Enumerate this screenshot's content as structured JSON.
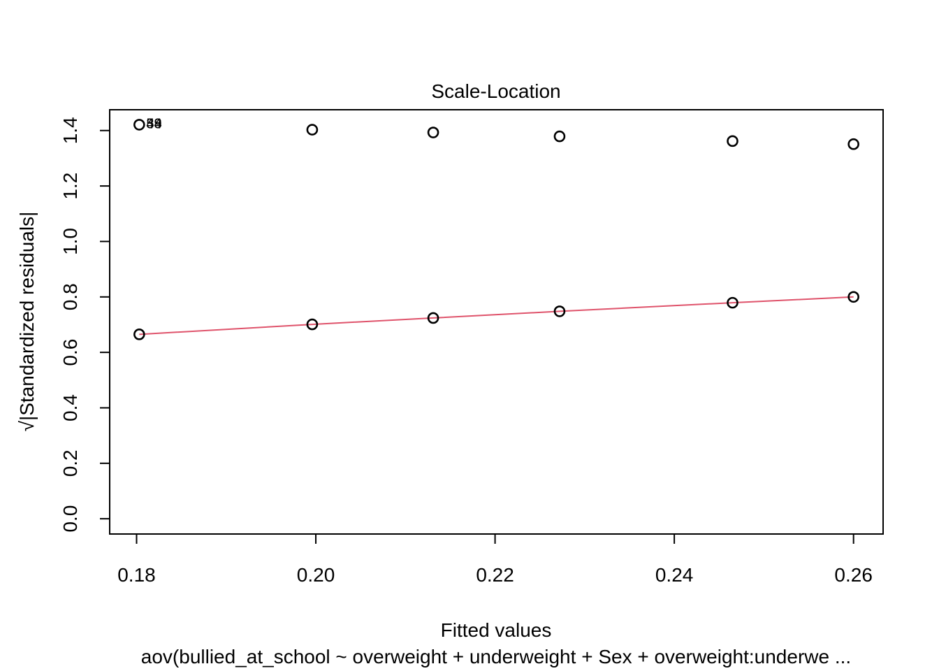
{
  "chart_data": {
    "type": "scatter",
    "title": "Scale-Location",
    "xlabel": "Fitted values",
    "ylabel": "√|Standardized residuals|",
    "subtitle": "aov(bullied_at_school ~ overweight + underweight + Sex + overweight:underwe ...",
    "xlim": [
      0.177,
      0.2633
    ],
    "ylim": [
      -0.055,
      1.475
    ],
    "x_ticks": [
      0.18,
      0.2,
      0.22,
      0.24,
      0.26
    ],
    "x_tick_labels": [
      "0.18",
      "0.20",
      "0.22",
      "0.24",
      "0.26"
    ],
    "y_ticks": [
      0.0,
      0.2,
      0.4,
      0.6,
      0.8,
      1.0,
      1.2,
      1.4
    ],
    "y_tick_labels": [
      "0.0",
      "0.2",
      "0.4",
      "0.6",
      "0.8",
      "1.0",
      "1.2",
      "1.4"
    ],
    "grid": false,
    "points": [
      {
        "x": 0.1803,
        "y": 1.421
      },
      {
        "x": 0.1996,
        "y": 1.403
      },
      {
        "x": 0.2131,
        "y": 1.393
      },
      {
        "x": 0.2272,
        "y": 1.379
      },
      {
        "x": 0.2465,
        "y": 1.362
      },
      {
        "x": 0.26,
        "y": 1.351
      },
      {
        "x": 0.1803,
        "y": 0.665
      },
      {
        "x": 0.1996,
        "y": 0.701
      },
      {
        "x": 0.2131,
        "y": 0.724
      },
      {
        "x": 0.2272,
        "y": 0.748
      },
      {
        "x": 0.2465,
        "y": 0.779
      },
      {
        "x": 0.26,
        "y": 0.8
      }
    ],
    "point_labels": [
      {
        "text": "59",
        "x": 0.1803,
        "y": 1.421
      },
      {
        "text": "44",
        "x": 0.1803,
        "y": 1.421
      },
      {
        "text": "38",
        "x": 0.1803,
        "y": 1.421
      }
    ],
    "smooth_line": {
      "color": "#DF536B",
      "x": [
        0.1803,
        0.1996,
        0.2131,
        0.2272,
        0.2465,
        0.26
      ],
      "y": [
        0.665,
        0.701,
        0.724,
        0.748,
        0.779,
        0.8
      ]
    }
  }
}
